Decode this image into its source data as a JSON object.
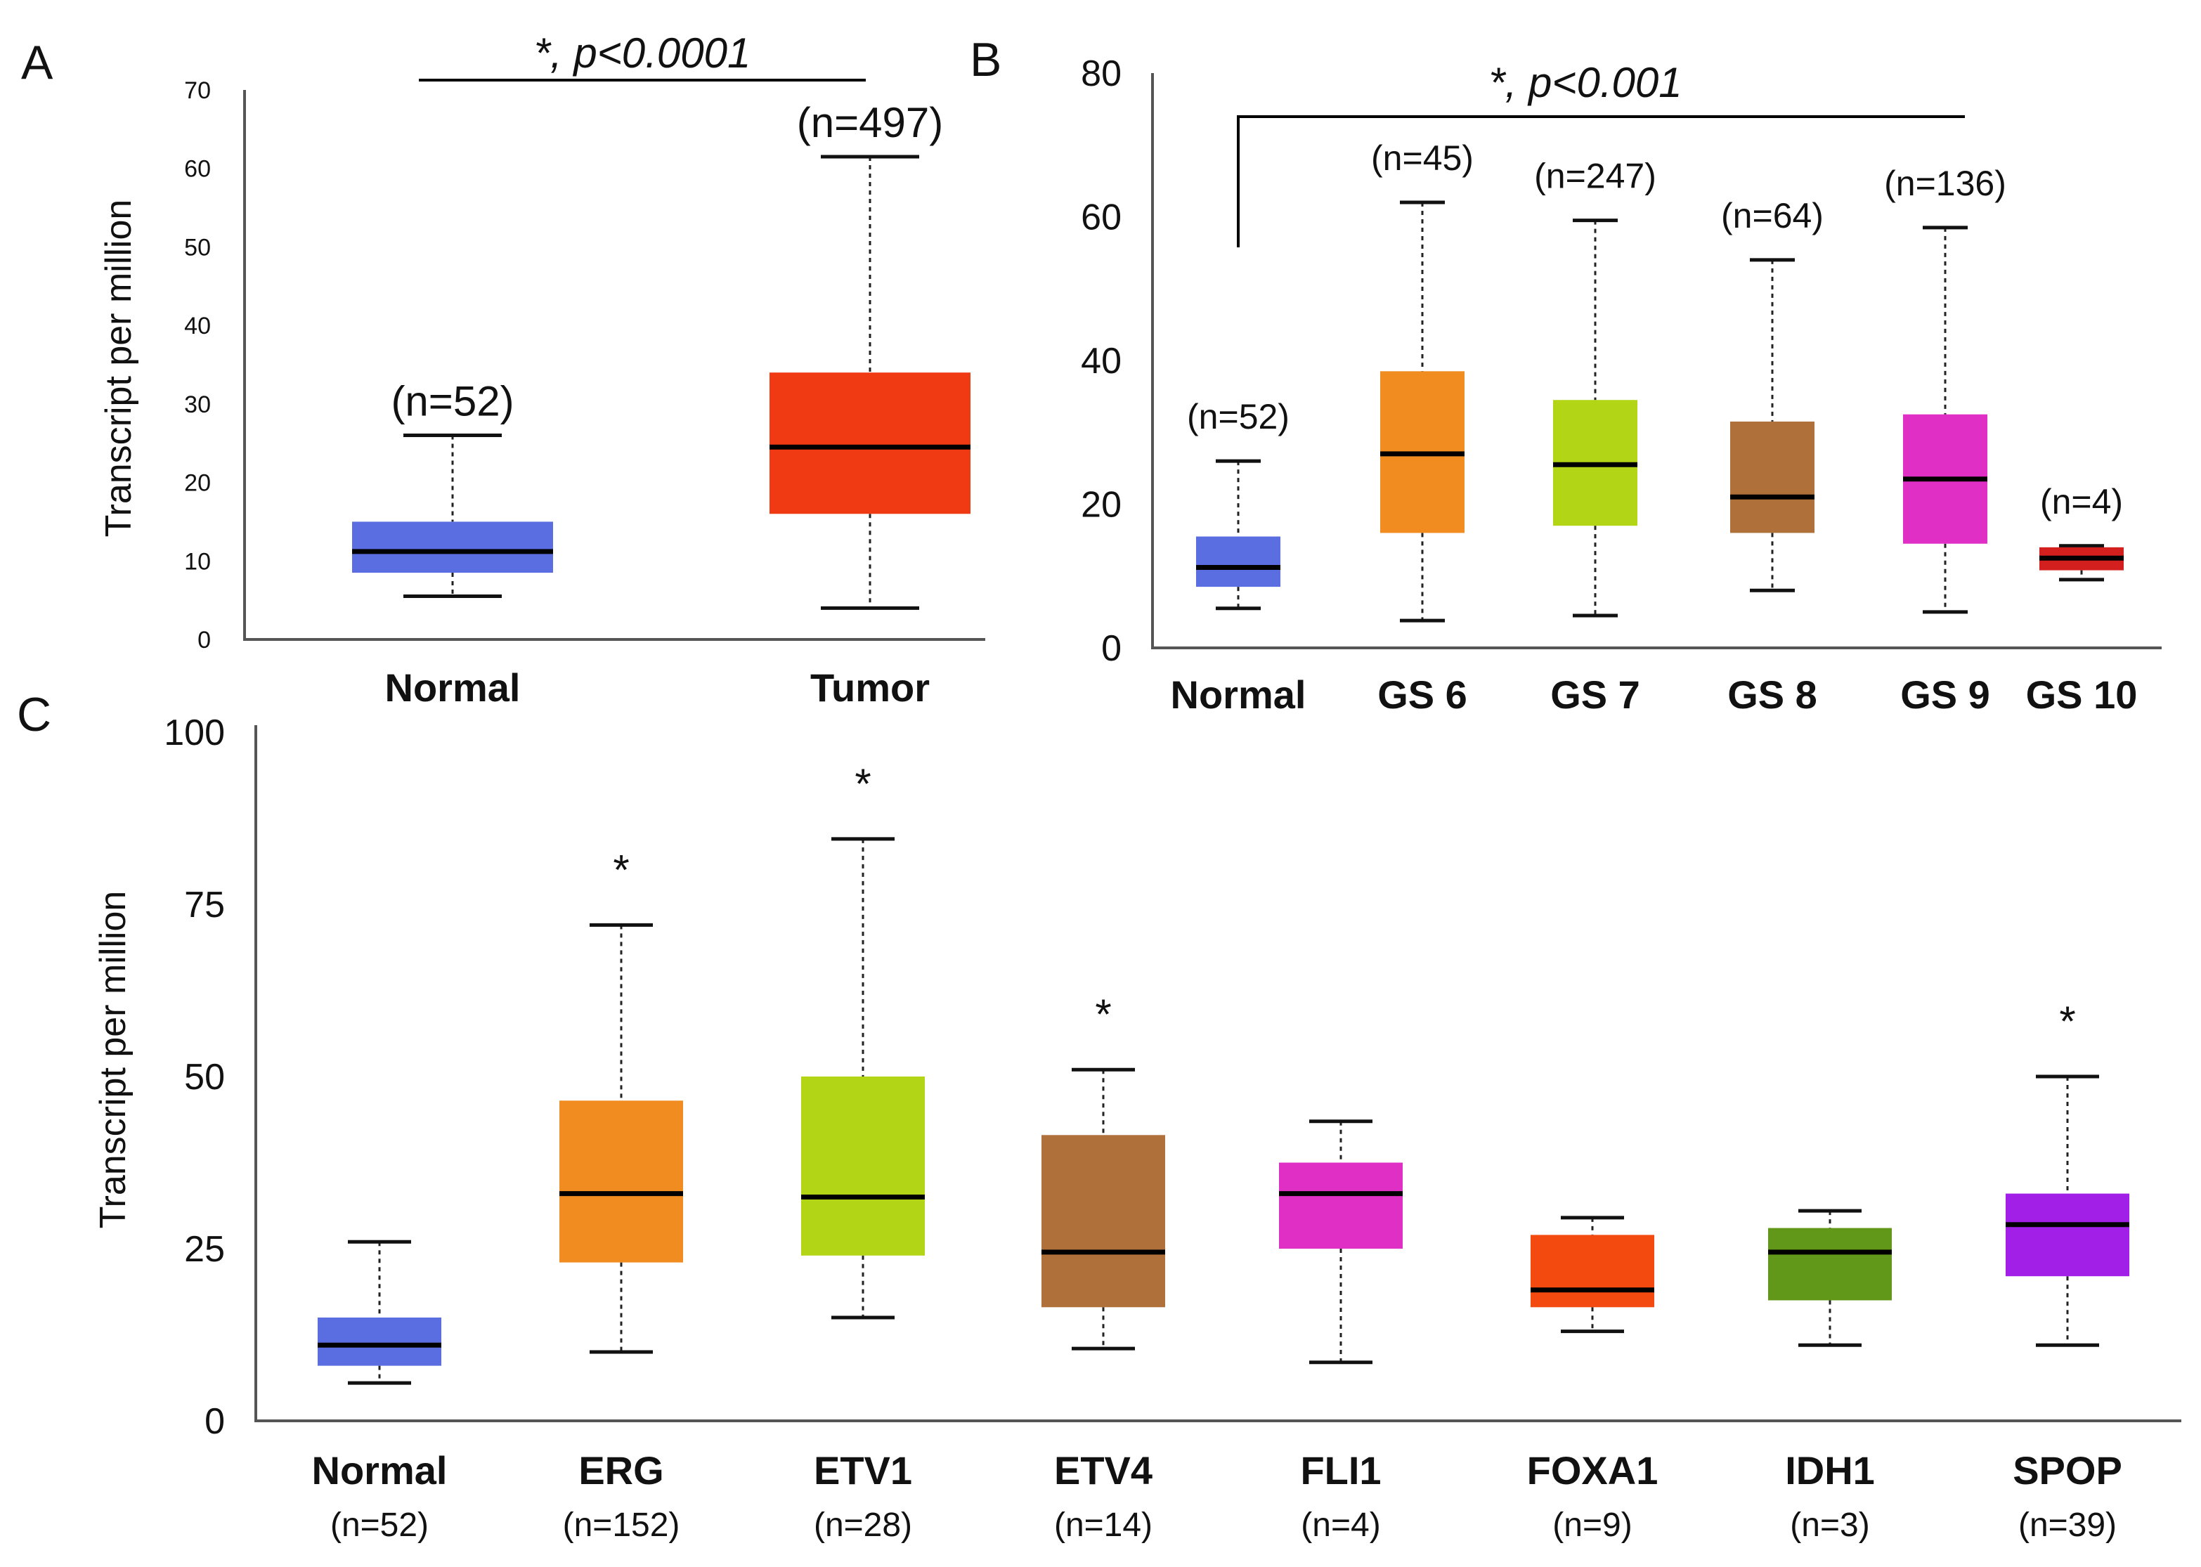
{
  "chart_data": [
    {
      "panel": "A",
      "type": "box",
      "ylabel": "Transcript per million",
      "ylim": [
        0,
        70
      ],
      "yticks": [
        "0",
        "10",
        "20",
        "30",
        "40",
        "50",
        "60",
        "70"
      ],
      "categories": [
        "Normal",
        "Tumor"
      ],
      "counts": [
        "(n=52)",
        "(n=497)"
      ],
      "colors": [
        "#5b6ee1",
        "#f03a14"
      ],
      "boxes": [
        {
          "min": 5.5,
          "q1": 8.5,
          "median": 11.2,
          "q3": 15,
          "max": 26
        },
        {
          "min": 4,
          "q1": 16,
          "median": 24.5,
          "q3": 34,
          "max": 61.5
        }
      ],
      "significance": {
        "star": "*",
        "text": ", p<0.0001"
      }
    },
    {
      "panel": "B",
      "type": "box",
      "ylim": [
        0,
        80
      ],
      "yticks": [
        "0",
        "20",
        "40",
        "60",
        "80"
      ],
      "categories": [
        "Normal",
        "GS 6",
        "GS 7",
        "GS 8",
        "GS 9",
        "GS 10"
      ],
      "counts": [
        "(n=52)",
        "(n=45)",
        "(n=247)",
        "(n=64)",
        "(n=136)",
        "(n=4)"
      ],
      "colors": [
        "#5b6ee1",
        "#f08c20",
        "#b2d516",
        "#b0703a",
        "#e02fc5",
        "#d41f1f"
      ],
      "boxes": [
        {
          "min": 5.5,
          "q1": 8.5,
          "median": 11.2,
          "q3": 15.5,
          "max": 26
        },
        {
          "min": 3.8,
          "q1": 16,
          "median": 27,
          "q3": 38.5,
          "max": 62
        },
        {
          "min": 4.5,
          "q1": 17,
          "median": 25.5,
          "q3": 34.5,
          "max": 59.5
        },
        {
          "min": 8,
          "q1": 16,
          "median": 21,
          "q3": 31.5,
          "max": 54
        },
        {
          "min": 5,
          "q1": 14.5,
          "median": 23.5,
          "q3": 32.5,
          "max": 58.5
        },
        {
          "min": 9.5,
          "q1": 10.8,
          "median": 12.5,
          "q3": 14,
          "max": 14.2
        }
      ],
      "significance": {
        "star": "*",
        "text": ", p<0.001"
      }
    },
    {
      "panel": "C",
      "type": "box",
      "ylabel": "Transcript per million",
      "ylim": [
        0,
        100
      ],
      "yticks": [
        "0",
        "25",
        "50",
        "75",
        "100"
      ],
      "categories": [
        "Normal",
        "ERG",
        "ETV1",
        "ETV4",
        "FLI1",
        "FOXA1",
        "IDH1",
        "SPOP"
      ],
      "counts": [
        "(n=52)",
        "(n=152)",
        "(n=28)",
        "(n=14)",
        "(n=4)",
        "(n=9)",
        "(n=3)",
        "(n=39)"
      ],
      "colors": [
        "#5b6ee1",
        "#f08c20",
        "#b2d516",
        "#b0703a",
        "#e02fc5",
        "#f24a0f",
        "#62981a",
        "#a11fe6"
      ],
      "significant": [
        false,
        true,
        true,
        true,
        false,
        false,
        false,
        true
      ],
      "star": "*",
      "boxes": [
        {
          "min": 5.5,
          "q1": 8,
          "median": 11,
          "q3": 15,
          "max": 26
        },
        {
          "min": 10,
          "q1": 23,
          "median": 33,
          "q3": 46.5,
          "max": 72
        },
        {
          "min": 15,
          "q1": 24,
          "median": 32.5,
          "q3": 50,
          "max": 84.5
        },
        {
          "min": 10.5,
          "q1": 16.5,
          "median": 24.5,
          "q3": 41.5,
          "max": 51
        },
        {
          "min": 8.5,
          "q1": 25,
          "median": 33,
          "q3": 37.5,
          "max": 43.5
        },
        {
          "min": 13,
          "q1": 16.5,
          "median": 19,
          "q3": 27,
          "max": 29.5
        },
        {
          "min": 11,
          "q1": 17.5,
          "median": 24.5,
          "q3": 28,
          "max": 30.5
        },
        {
          "min": 11,
          "q1": 21,
          "median": 28.5,
          "q3": 33,
          "max": 50
        }
      ]
    }
  ]
}
